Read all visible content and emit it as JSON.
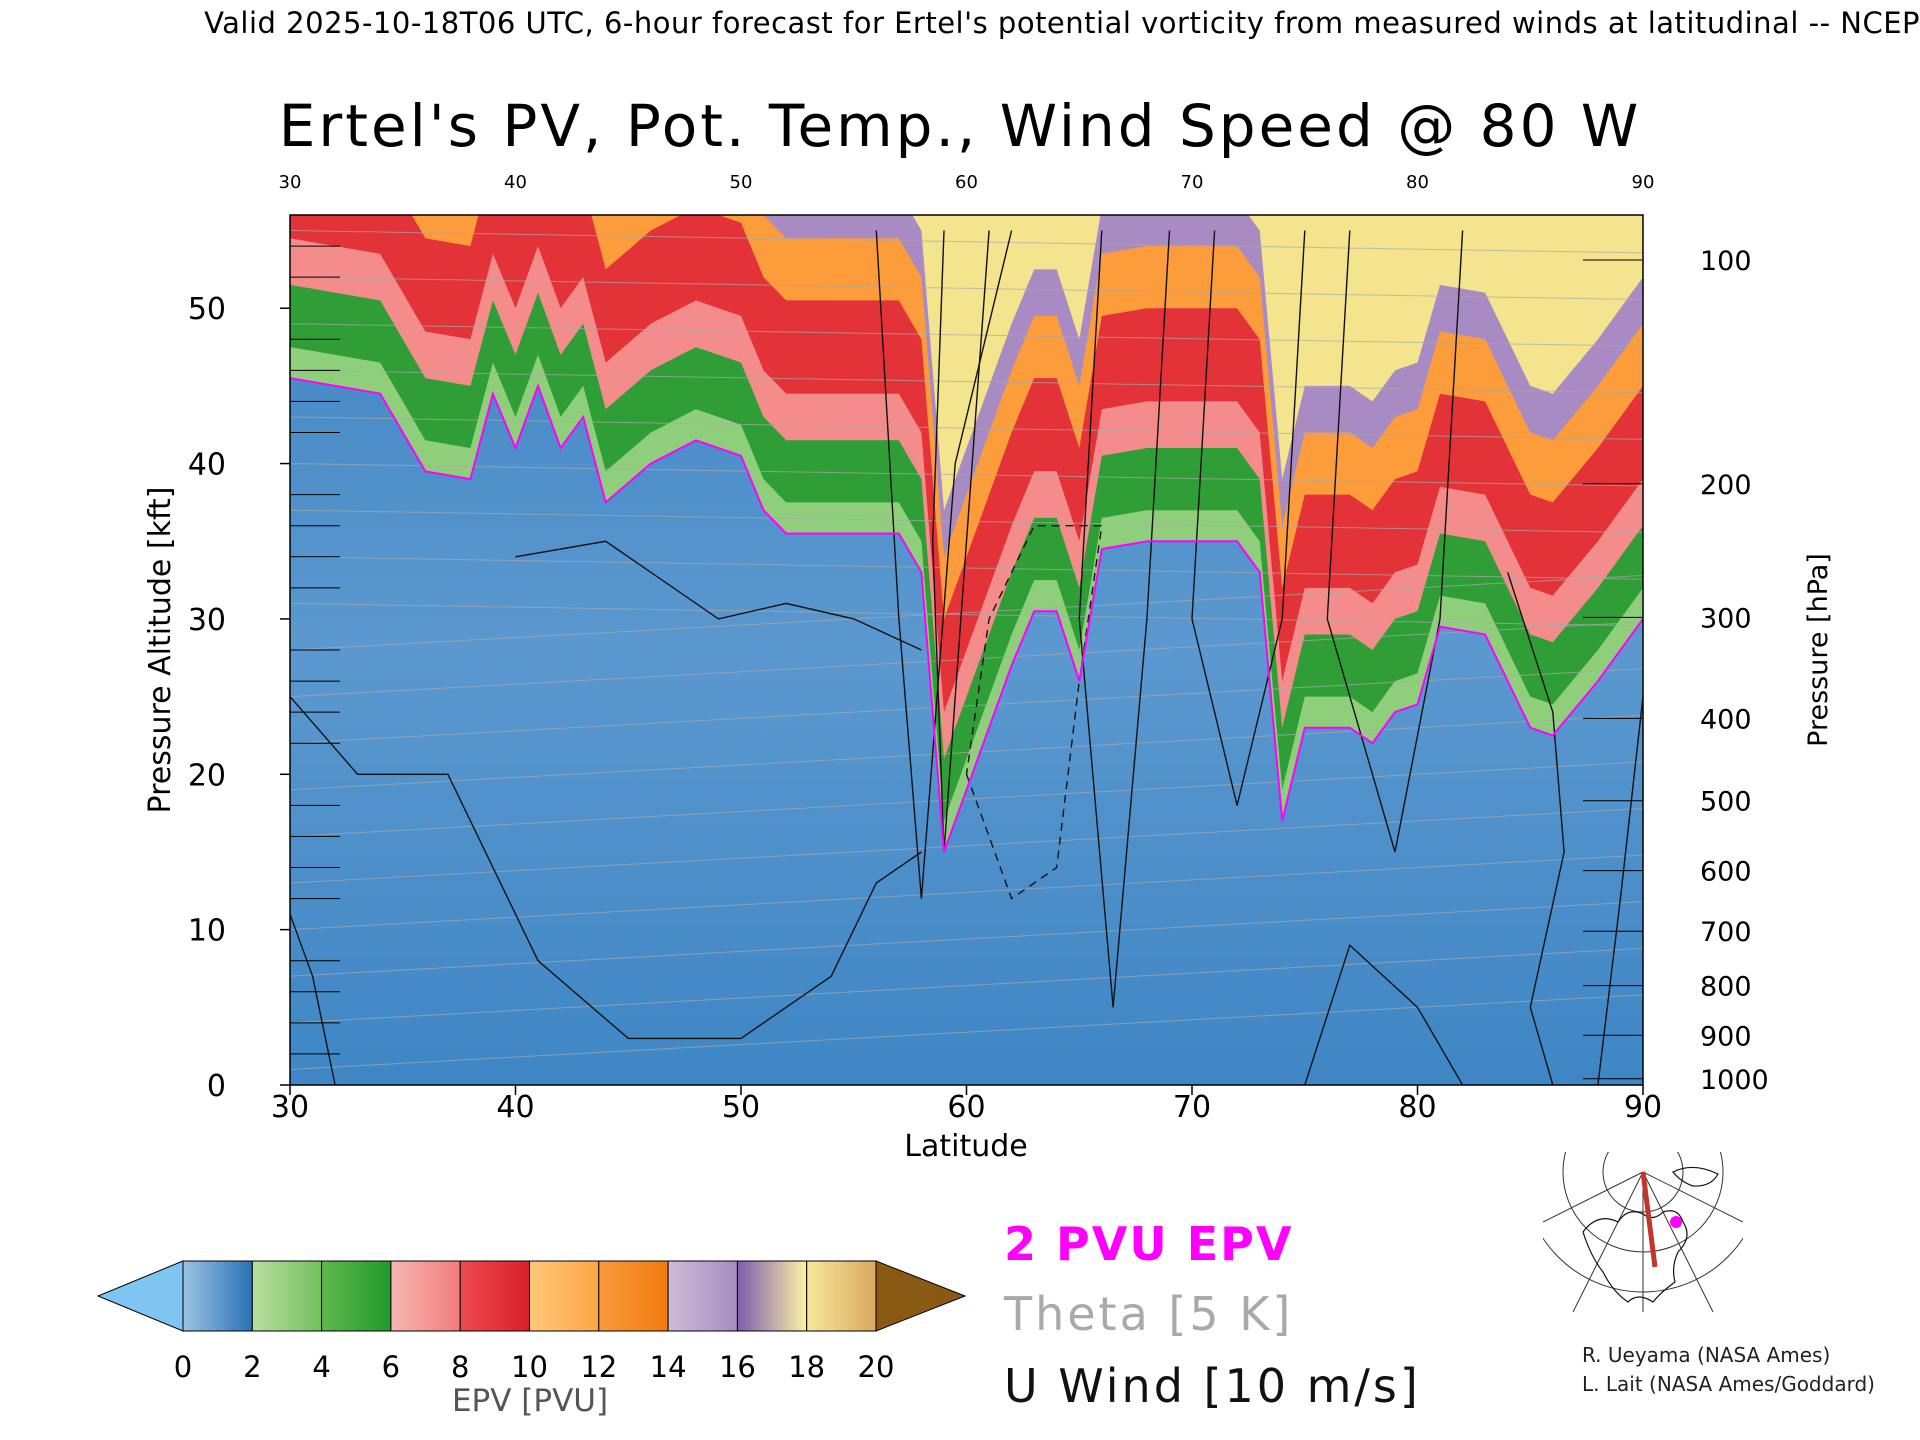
{
  "header": {
    "caption": "Valid 2025-10-18T06 UTC, 6-hour forecast for Ertel's potential vorticity from measured winds at latitudinal -- NCEP"
  },
  "chart_data": {
    "type": "heatmap",
    "title": "Ertel's PV, Pot. Temp., Wind Speed @ 80 W",
    "xlabel": "Latitude",
    "ylabel": "Pressure Altitude [kft]",
    "y2label": "Pressure [hPa]",
    "xlim": [
      30,
      90
    ],
    "ylim": [
      0,
      56
    ],
    "x_ticks": [
      "30",
      "40",
      "50",
      "60",
      "70",
      "80",
      "90"
    ],
    "top_x_ticks": [
      "30",
      "40",
      "50",
      "60",
      "70",
      "80",
      "90"
    ],
    "y_ticks": [
      "0",
      "10",
      "20",
      "30",
      "40",
      "50"
    ],
    "y_tick_values": [
      0,
      10,
      20,
      30,
      40,
      50
    ],
    "pressure_ticks": [
      {
        "label": "100",
        "kft": 53.1
      },
      {
        "label": "200",
        "kft": 38.7
      },
      {
        "label": "300",
        "kft": 30.1
      },
      {
        "label": "400",
        "kft": 23.6
      },
      {
        "label": "500",
        "kft": 18.3
      },
      {
        "label": "600",
        "kft": 13.8
      },
      {
        "label": "700",
        "kft": 9.9
      },
      {
        "label": "800",
        "kft": 6.4
      },
      {
        "label": "900",
        "kft": 3.2
      },
      {
        "label": "1000",
        "kft": 0.4
      }
    ],
    "tropopause_2pvu_kft": [
      {
        "lat": 30,
        "kft": 45.5
      },
      {
        "lat": 34,
        "kft": 44.5
      },
      {
        "lat": 36,
        "kft": 39.5
      },
      {
        "lat": 38,
        "kft": 39
      },
      {
        "lat": 39,
        "kft": 44.5
      },
      {
        "lat": 40,
        "kft": 41
      },
      {
        "lat": 41,
        "kft": 45
      },
      {
        "lat": 42,
        "kft": 41
      },
      {
        "lat": 43,
        "kft": 43
      },
      {
        "lat": 44,
        "kft": 37.5
      },
      {
        "lat": 46,
        "kft": 40
      },
      {
        "lat": 48,
        "kft": 41.5
      },
      {
        "lat": 50,
        "kft": 40.5
      },
      {
        "lat": 51,
        "kft": 37
      },
      {
        "lat": 52,
        "kft": 35.5
      },
      {
        "lat": 55,
        "kft": 35.5
      },
      {
        "lat": 57,
        "kft": 35.5
      },
      {
        "lat": 58,
        "kft": 33
      },
      {
        "lat": 59,
        "kft": 15
      },
      {
        "lat": 60,
        "kft": 19
      },
      {
        "lat": 62,
        "kft": 27
      },
      {
        "lat": 63,
        "kft": 30.5
      },
      {
        "lat": 64,
        "kft": 30.5
      },
      {
        "lat": 65,
        "kft": 26
      },
      {
        "lat": 66,
        "kft": 34.5
      },
      {
        "lat": 68,
        "kft": 35
      },
      {
        "lat": 72,
        "kft": 35
      },
      {
        "lat": 73,
        "kft": 33
      },
      {
        "lat": 74,
        "kft": 17
      },
      {
        "lat": 75,
        "kft": 23
      },
      {
        "lat": 77,
        "kft": 23
      },
      {
        "lat": 78,
        "kft": 22
      },
      {
        "lat": 79,
        "kft": 24
      },
      {
        "lat": 80,
        "kft": 24.5
      },
      {
        "lat": 81,
        "kft": 29.5
      },
      {
        "lat": 83,
        "kft": 29
      },
      {
        "lat": 85,
        "kft": 23
      },
      {
        "lat": 86,
        "kft": 22.5
      },
      {
        "lat": 88,
        "kft": 26
      },
      {
        "lat": 90,
        "kft": 30
      }
    ],
    "epv_colorbar": {
      "label": "EPV [PVU]",
      "ticks": [
        "0",
        "2",
        "4",
        "6",
        "8",
        "10",
        "12",
        "14",
        "16",
        "18",
        "20"
      ],
      "under_color": "#7ec5f2",
      "over_color": "#8a5a14",
      "segments": [
        {
          "from": 0,
          "to": 2,
          "colors": [
            "#9cc4e3",
            "#2a71b5"
          ]
        },
        {
          "from": 2,
          "to": 4,
          "colors": [
            "#b9dea0",
            "#73c05c"
          ]
        },
        {
          "from": 4,
          "to": 6,
          "colors": [
            "#5fb84c",
            "#219a2c"
          ]
        },
        {
          "from": 6,
          "to": 8,
          "colors": [
            "#f6b7b2",
            "#f27c7c"
          ]
        },
        {
          "from": 8,
          "to": 10,
          "colors": [
            "#ee4a4f",
            "#d9202a"
          ]
        },
        {
          "from": 10,
          "to": 12,
          "colors": [
            "#ffc87a",
            "#fda646"
          ]
        },
        {
          "from": 12,
          "to": 14,
          "colors": [
            "#fb9a3b",
            "#f07b10"
          ]
        },
        {
          "from": 14,
          "to": 16,
          "colors": [
            "#d1bbd9",
            "#a58cc1"
          ]
        },
        {
          "from": 16,
          "to": 18,
          "colors": [
            "#7d5cae",
            "#fdf3a5"
          ]
        },
        {
          "from": 18,
          "to": 20,
          "colors": [
            "#f7e79b",
            "#d9a95e"
          ]
        }
      ]
    },
    "color_bands_kft_above_tropopause": [
      {
        "offset": 0,
        "color": "#8fcf7c"
      },
      {
        "offset": 2,
        "color": "#2f9e36"
      },
      {
        "offset": 6,
        "color": "#f58c8c"
      },
      {
        "offset": 9,
        "color": "#e33339"
      },
      {
        "offset": 15,
        "color": "#fc9c3b"
      },
      {
        "offset": 19,
        "color": "#a98bc4"
      },
      {
        "offset": 22,
        "color": "#f4e48d"
      }
    ],
    "colors": {
      "troposphere": "#4f8fc8",
      "tropopause_contour": "#ff00ff",
      "theta_contour": "#a9a9a9",
      "wind_contour": "#111111"
    }
  },
  "legend": {
    "pvu": "2 PVU EPV",
    "theta": "Theta [5 K]",
    "uwind": "U Wind [10 m/s]"
  },
  "credits": {
    "line1": "R. Ueyama (NASA Ames)",
    "line2": "L. Lait (NASA Ames/Goddard)"
  },
  "map_inset": {
    "section_color": "#c0362c",
    "marker_color": "#ff00ff"
  }
}
